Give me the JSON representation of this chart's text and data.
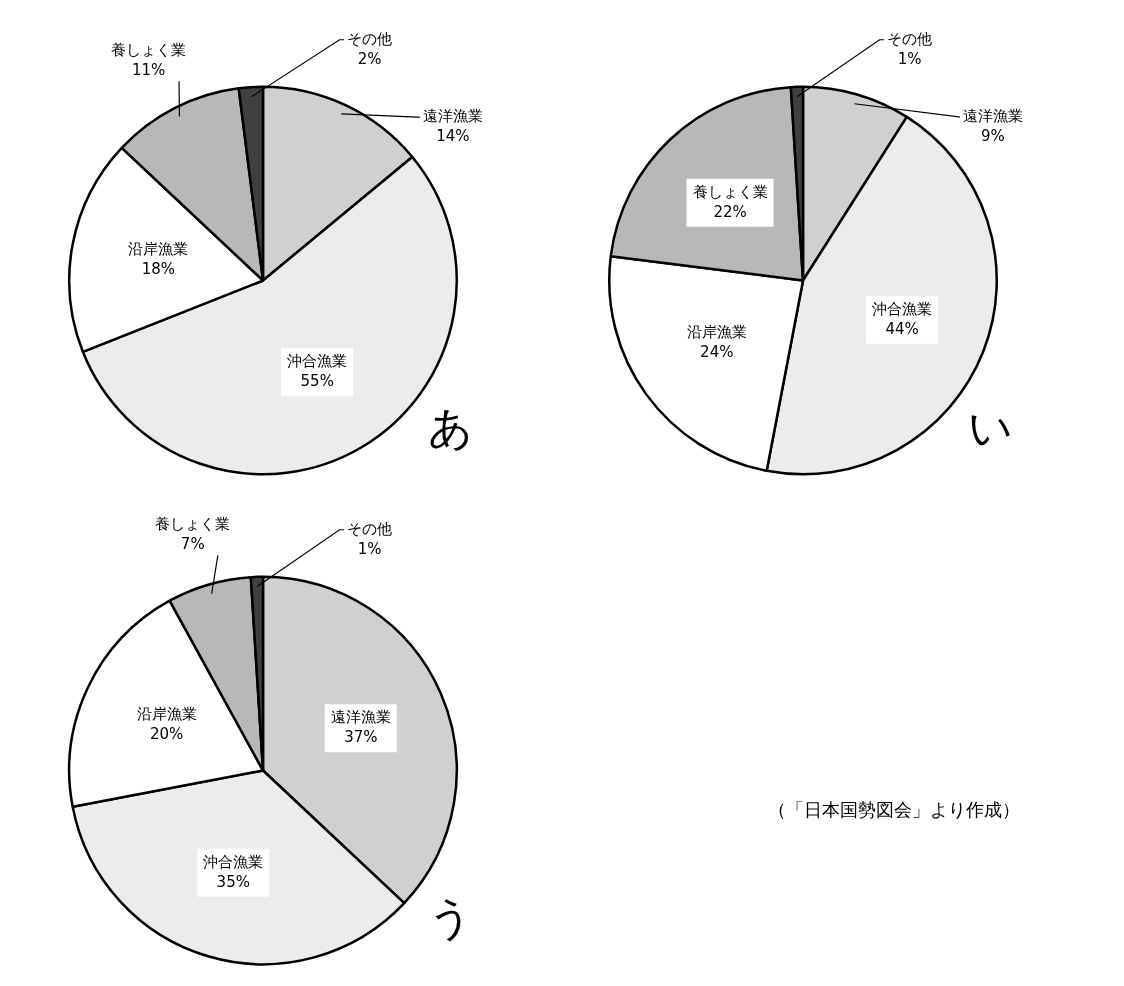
{
  "chart_data": [
    {
      "type": "pie",
      "title": "あ",
      "categories": [
        "遠洋漁業",
        "沖合漁業",
        "沿岸漁業",
        "養しょく業",
        "その他"
      ],
      "values": [
        14,
        55,
        18,
        11,
        2
      ],
      "value_labels": [
        "14%",
        "55%",
        "18%",
        "11%",
        "2%"
      ],
      "colors": [
        "#d0d0d0",
        "#ececec",
        "#ffffff",
        "#b8b8b8",
        "#404040"
      ],
      "legend": false
    },
    {
      "type": "pie",
      "title": "い",
      "categories": [
        "遠洋漁業",
        "沖合漁業",
        "沿岸漁業",
        "養しょく業",
        "その他"
      ],
      "values": [
        9,
        44,
        24,
        22,
        1
      ],
      "value_labels": [
        "9%",
        "44%",
        "24%",
        "22%",
        "1%"
      ],
      "colors": [
        "#d0d0d0",
        "#ececec",
        "#ffffff",
        "#b8b8b8",
        "#404040"
      ],
      "legend": false
    },
    {
      "type": "pie",
      "title": "う",
      "categories": [
        "遠洋漁業",
        "沖合漁業",
        "沿岸漁業",
        "養しょく業",
        "その他"
      ],
      "values": [
        37,
        35,
        20,
        7,
        1
      ],
      "value_labels": [
        "37%",
        "35%",
        "20%",
        "7%",
        "1%"
      ],
      "colors": [
        "#d0d0d0",
        "#ececec",
        "#ffffff",
        "#b8b8b8",
        "#404040"
      ],
      "legend": false,
      "annotations": [
        "（「日本国勢図会」より作成）"
      ]
    }
  ]
}
